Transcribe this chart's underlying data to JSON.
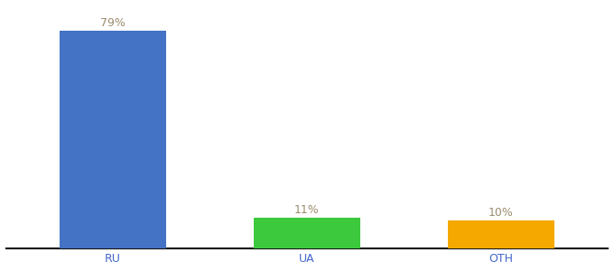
{
  "categories": [
    "RU",
    "UA",
    "OTH"
  ],
  "values": [
    79,
    11,
    10
  ],
  "labels": [
    "79%",
    "11%",
    "10%"
  ],
  "bar_colors": [
    "#4472c4",
    "#3dc93d",
    "#f5a800"
  ],
  "xlabel": "",
  "ylabel": "",
  "ylim": [
    0,
    88
  ],
  "background_color": "#ffffff",
  "label_color": "#9b8c6e",
  "axis_label_color": "#4466cc",
  "bar_width": 0.55,
  "x_positions": [
    0,
    1,
    1.75
  ]
}
